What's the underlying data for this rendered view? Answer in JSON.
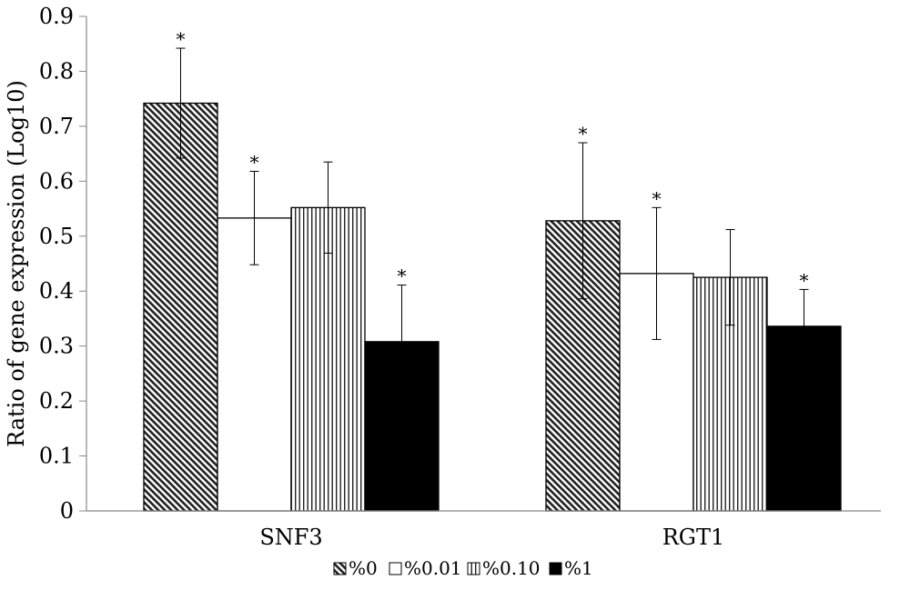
{
  "chart_data": {
    "type": "bar",
    "ylabel": "Ratio of gene expression (Log10)",
    "ylim": [
      0,
      0.9
    ],
    "yticks": [
      "0",
      "0.1",
      "0.2",
      "0.3",
      "0.4",
      "0.5",
      "0.6",
      "0.7",
      "0.8",
      "0.9"
    ],
    "categories": [
      "SNF3",
      "RGT1"
    ],
    "series": [
      {
        "name": "%0",
        "pattern": "diagonal-hatch",
        "values": [
          0.742,
          0.528
        ],
        "errors": [
          0.1,
          0.142
        ],
        "significant": [
          true,
          true
        ]
      },
      {
        "name": "%0.01",
        "pattern": "white",
        "values": [
          0.533,
          0.432
        ],
        "errors": [
          0.085,
          0.12
        ],
        "significant": [
          true,
          true
        ]
      },
      {
        "name": "%0.10",
        "pattern": "vertical-lines",
        "values": [
          0.552,
          0.425
        ],
        "errors": [
          0.083,
          0.087
        ],
        "significant": [
          false,
          false
        ]
      },
      {
        "name": "%1",
        "pattern": "solid-black",
        "values": [
          0.308,
          0.336
        ],
        "errors": [
          0.103,
          0.067
        ],
        "significant": [
          true,
          true
        ]
      }
    ],
    "significance_marker": "*",
    "grid": false,
    "legend_position": "bottom"
  }
}
